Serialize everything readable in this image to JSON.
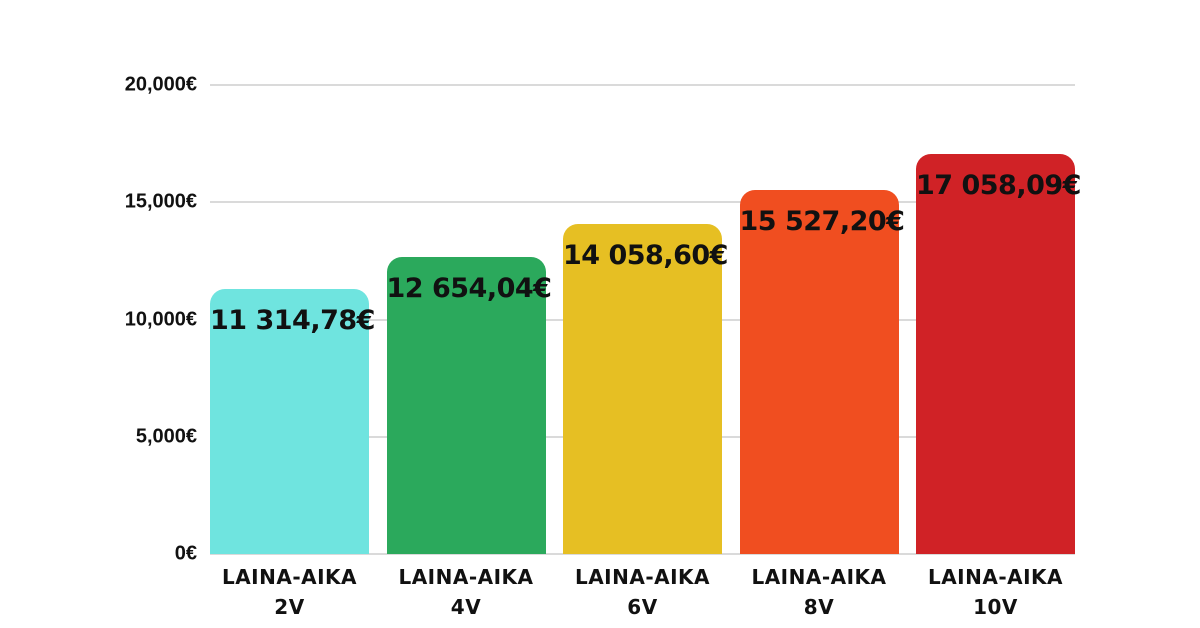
{
  "chart_data": {
    "type": "bar",
    "title": "",
    "xlabel": "",
    "ylabel": "",
    "categories": [
      "LAINA-AIKA 2V",
      "LAINA-AIKA 4V",
      "LAINA-AIKA 6V",
      "LAINA-AIKA 8V",
      "LAINA-AIKA 10V"
    ],
    "category_lines": [
      [
        "LAINA-AIKA",
        "2V"
      ],
      [
        "LAINA-AIKA",
        "4V"
      ],
      [
        "LAINA-AIKA",
        "6V"
      ],
      [
        "LAINA-AIKA",
        "8V"
      ],
      [
        "LAINA-AIKA",
        "10V"
      ]
    ],
    "values": [
      11314.78,
      12654.04,
      14058.6,
      15527.2,
      17058.09
    ],
    "value_labels": [
      "11 314,78€",
      "12 654,04€",
      "14 058,60€",
      "15 527,20€",
      "17 058,09€"
    ],
    "bar_colors": [
      "#6FE4DF",
      "#2BA95C",
      "#E6BF23",
      "#F04E20",
      "#D02226"
    ],
    "ylim": [
      0,
      20000
    ],
    "yticks": [
      {
        "value": 0,
        "label": "0€"
      },
      {
        "value": 5000,
        "label": "5,000€"
      },
      {
        "value": 10000,
        "label": "10,000€"
      },
      {
        "value": 15000,
        "label": "15,000€"
      },
      {
        "value": 20000,
        "label": "20,000€"
      }
    ],
    "grid": true,
    "legend": "none"
  },
  "colors": {
    "background": "#ffffff",
    "grid": "#dadada",
    "label_text": "#111111",
    "tick_text": "#111111"
  }
}
